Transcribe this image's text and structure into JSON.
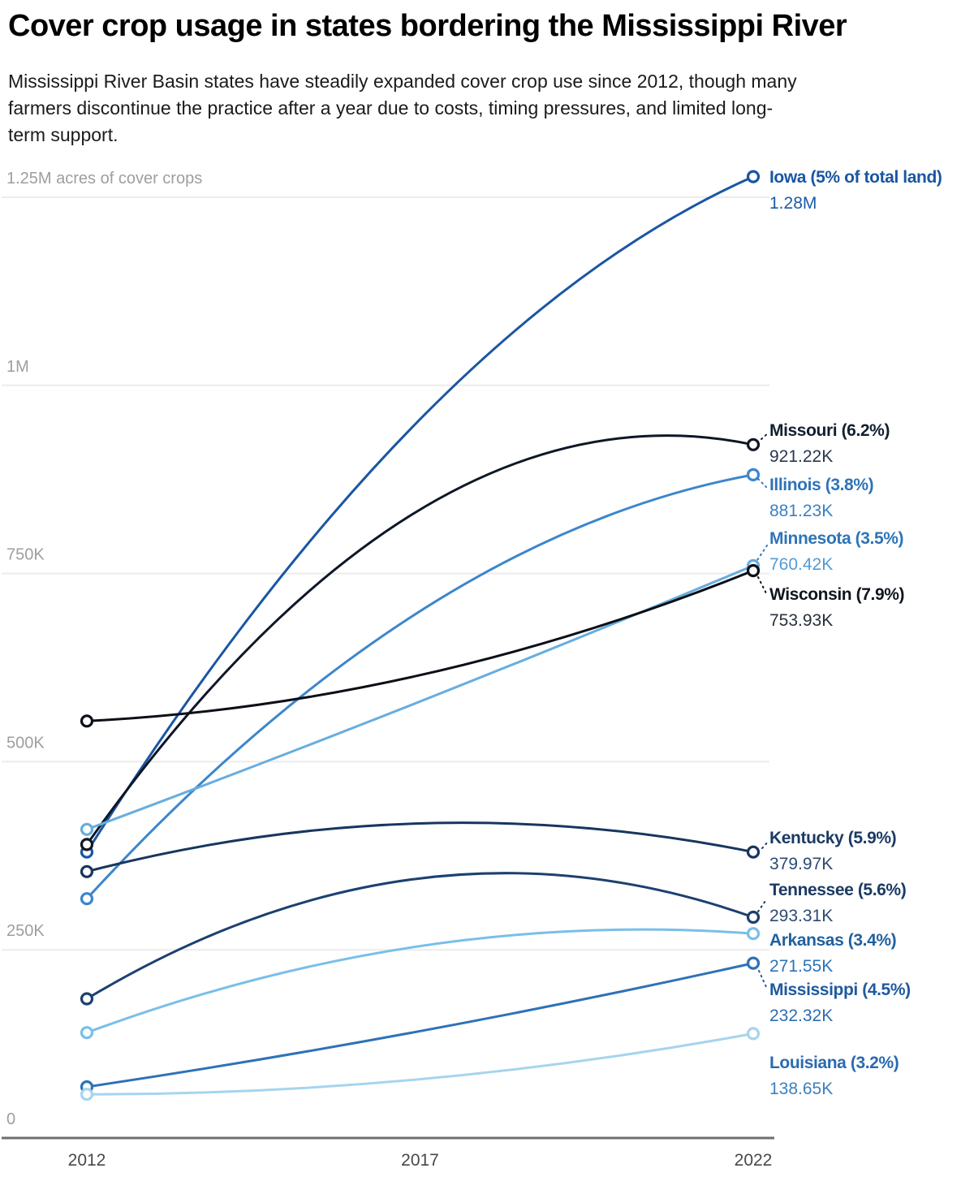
{
  "header": {
    "title": "Cover crop usage in states bordering the Mississippi River",
    "subtitle_lines": [
      "Mississippi River Basin states have steadily expanded cover crop use since 2012, though many",
      "farmers discontinue the practice after a year due to costs, timing pressures, and limited long-",
      "term support."
    ]
  },
  "chart_data": {
    "type": "line",
    "title": "Cover crop usage in states bordering the Mississippi River",
    "x": [
      2012,
      2017,
      2022
    ],
    "x_tick_labels": [
      "2012",
      "2017",
      "2022"
    ],
    "y_axis": {
      "unit": "acres of cover crops",
      "tick_labels": [
        "1.25M acres of cover crops",
        "1M",
        "750K",
        "500K",
        "250K",
        "0"
      ],
      "tick_values_k": [
        1250,
        1000,
        750,
        500,
        250,
        0
      ],
      "range_k": [
        0,
        1330
      ],
      "grid": true
    },
    "legend_position": "right-edge-labels",
    "series": [
      {
        "id": "iowa",
        "label": "Iowa (5% of total land)",
        "value_label": "1.28M",
        "values_k": [
          380,
          955,
          1277.42
        ],
        "color": "#1a56a3",
        "label_color": "#1a56a3",
        "value_color": "#1d5aa8"
      },
      {
        "id": "missouri",
        "label": "Missouri (6.2%)",
        "value_label": "921.22K",
        "values_k": [
          390,
          835,
          921.22
        ],
        "color": "#0e1726",
        "label_color": "#131f30",
        "value_color": "#2a3750"
      },
      {
        "id": "illinois",
        "label": "Illinois (3.8%)",
        "value_label": "881.23K",
        "values_k": [
          318,
          700,
          881.23
        ],
        "color": "#3c86cc",
        "label_color": "#2e73b8",
        "value_color": "#3a80c4"
      },
      {
        "id": "minnesota",
        "label": "Minnesota (3.5%)",
        "value_label": "760.42K",
        "values_k": [
          410,
          580,
          760.42
        ],
        "color": "#66ade0",
        "label_color": "#2e74b5",
        "value_color": "#549bd4"
      },
      {
        "id": "wisconsin",
        "label": "Wisconsin (7.9%)",
        "value_label": "753.93K",
        "values_k": [
          554,
          615,
          753.93
        ],
        "color": "#0b0f16",
        "label_color": "#10161f",
        "value_color": "#27303d"
      },
      {
        "id": "kentucky",
        "label": "Kentucky (5.9%)",
        "value_label": "379.97K",
        "values_k": [
          354,
          418,
          379.97
        ],
        "color": "#17365f",
        "label_color": "#1a3a63",
        "value_color": "#2c4a73"
      },
      {
        "id": "tennessee",
        "label": "Tennessee (5.6%)",
        "value_label": "293.31K",
        "values_k": [
          185,
          345,
          293.31
        ],
        "color": "#1c4070",
        "label_color": "#1a3a63",
        "value_color": "#2c4a73"
      },
      {
        "id": "arkansas",
        "label": "Arkansas (3.4%)",
        "value_label": "271.55K",
        "values_k": [
          140,
          255,
          271.55
        ],
        "color": "#79bfe9",
        "label_color": "#21619e",
        "value_color": "#2e73b8"
      },
      {
        "id": "mississippi",
        "label": "Mississippi (4.5%)",
        "value_label": "232.32K",
        "values_k": [
          68,
          142,
          232.32
        ],
        "color": "#2e72b8",
        "label_color": "#1f5a9e",
        "value_color": "#2e6db0"
      },
      {
        "id": "louisiana",
        "label": "Louisiana (3.2%)",
        "value_label": "138.65K",
        "values_k": [
          58,
          78,
          138.65
        ],
        "color": "#a6d4ef",
        "label_color": "#2a6ab0",
        "value_color": "#3c80c0"
      }
    ]
  }
}
